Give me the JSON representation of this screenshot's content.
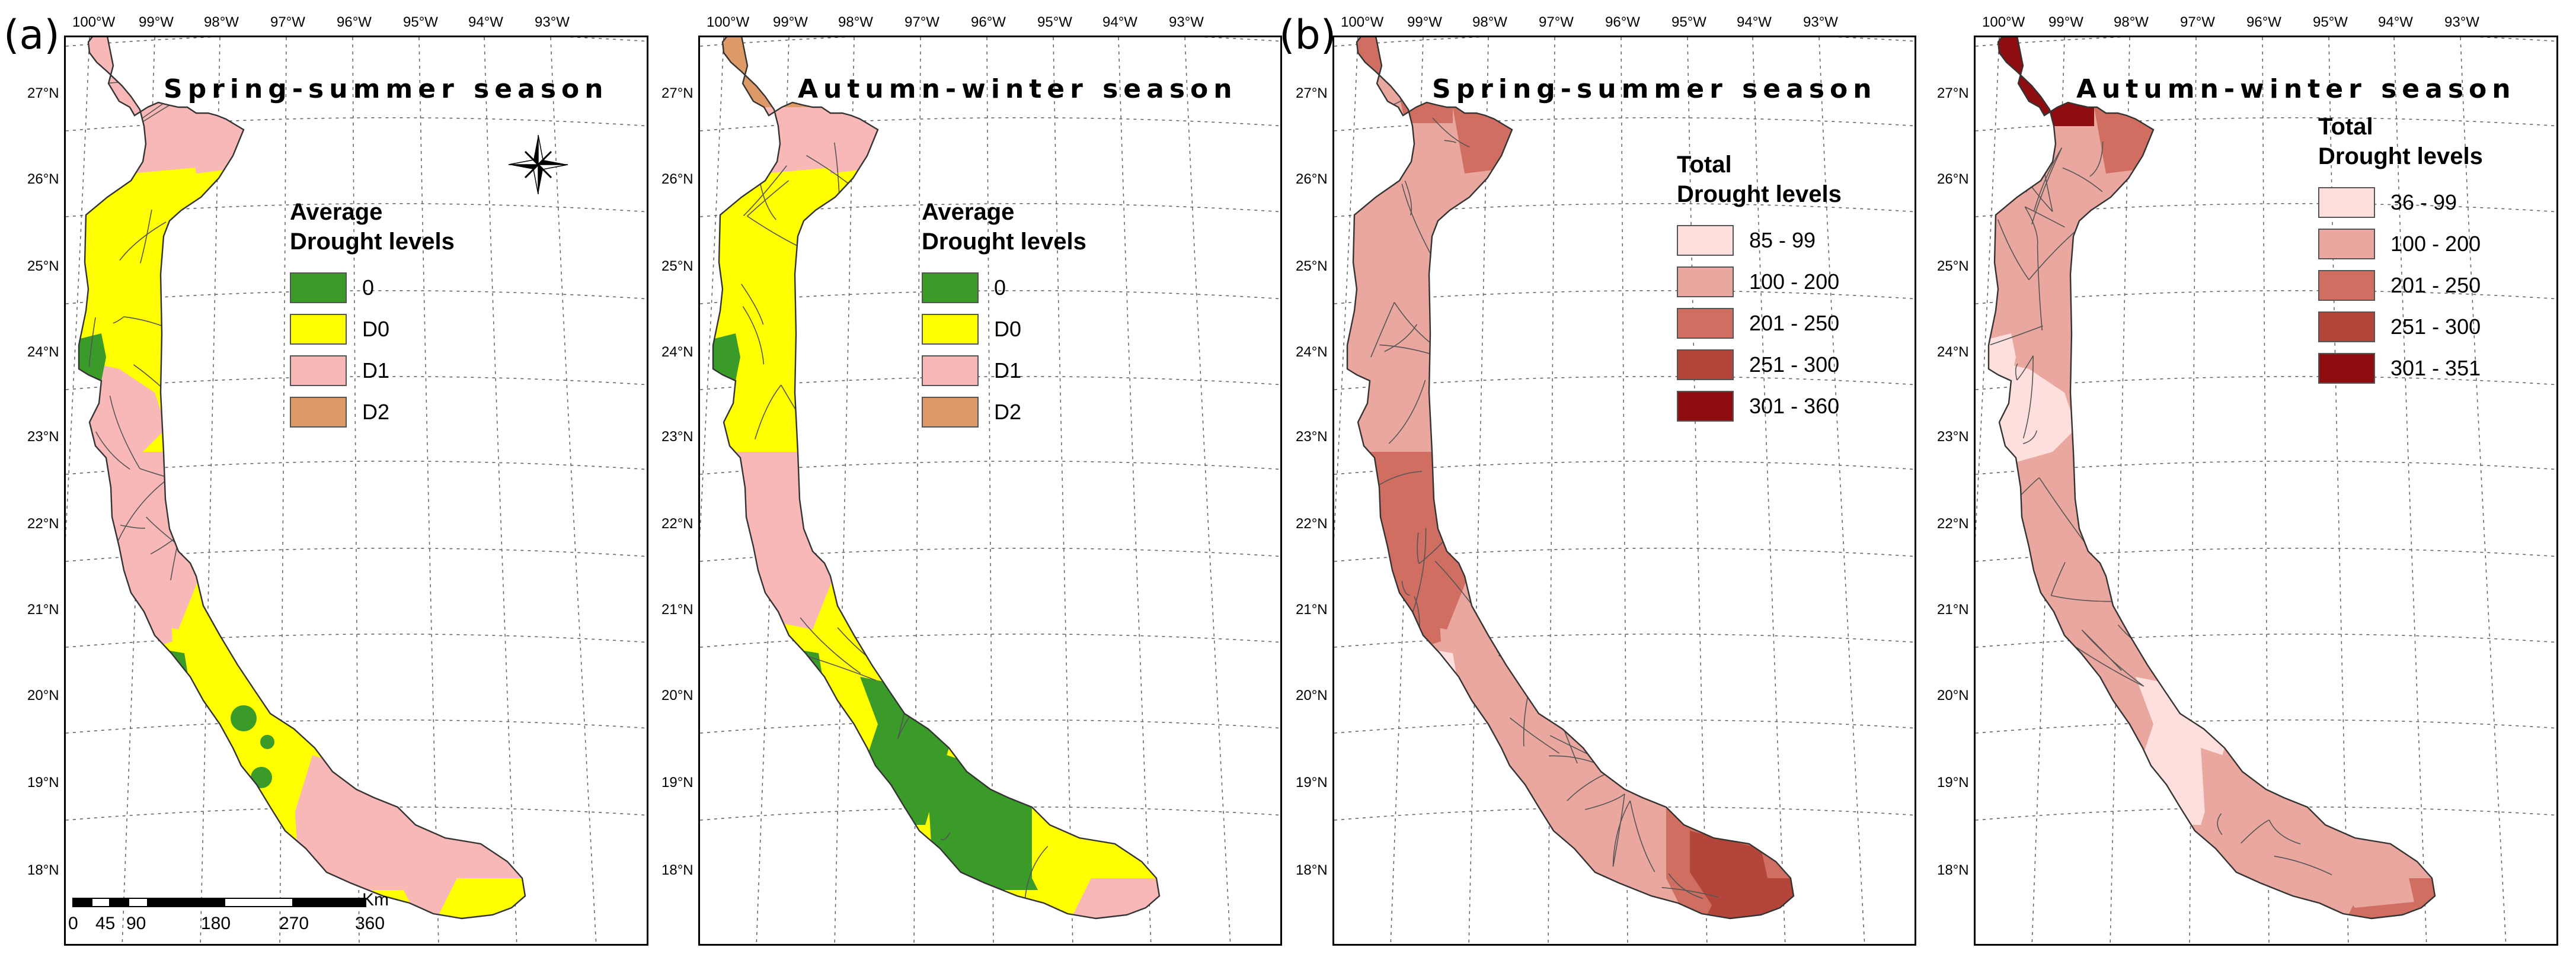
{
  "panel_labels": [
    "(a)",
    "(b)"
  ],
  "tick_labels": {
    "longitude": [
      "100°W",
      "99°W",
      "98°W",
      "97°W",
      "96°W",
      "95°W",
      "94°W",
      "93°W"
    ],
    "latitude": [
      "27°N",
      "26°N",
      "25°N",
      "24°N",
      "23°N",
      "22°N",
      "21°N",
      "20°N",
      "19°N",
      "18°N"
    ]
  },
  "colors": {
    "green": "#3a9b28",
    "yellow": "#ffff00",
    "pink": "#f8b8b8",
    "tan": "#dd9966",
    "total_1": "#fde0de",
    "total_2": "#e9a79f",
    "total_3": "#cf6e61",
    "total_4": "#b3453b",
    "total_5": "#8e0d10"
  },
  "maps": [
    {
      "title": "Spring-summer season",
      "legend_title": [
        "Average",
        "Drought levels"
      ],
      "legend": [
        {
          "label": "0",
          "color": "#3a9b28"
        },
        {
          "label": "D0",
          "color": "#ffff00"
        },
        {
          "label": "D1",
          "color": "#f8b8b8"
        },
        {
          "label": "D2",
          "color": "#dd9966"
        }
      ],
      "has_north_arrow": true,
      "has_scale_bar": true
    },
    {
      "title": "Autumn-winter season",
      "legend_title": [
        "Average",
        "Drought levels"
      ],
      "legend": [
        {
          "label": "0",
          "color": "#3a9b28"
        },
        {
          "label": "D0",
          "color": "#ffff00"
        },
        {
          "label": "D1",
          "color": "#f8b8b8"
        },
        {
          "label": "D2",
          "color": "#dd9966"
        }
      ]
    },
    {
      "title": "Spring-summer season",
      "legend_title": [
        "Total",
        "Drought levels"
      ],
      "legend": [
        {
          "label": "85 - 99",
          "color": "#fde0de"
        },
        {
          "label": "100 - 200",
          "color": "#e9a79f"
        },
        {
          "label": "201 - 250",
          "color": "#cf6e61"
        },
        {
          "label": "251 - 300",
          "color": "#b3453b"
        },
        {
          "label": "301 - 360",
          "color": "#8e0d10"
        }
      ]
    },
    {
      "title": "Autumn-winter season",
      "legend_title": [
        "Total",
        "Drought levels"
      ],
      "legend": [
        {
          "label": "36 - 99",
          "color": "#fde0de"
        },
        {
          "label": "100 - 200",
          "color": "#e9a79f"
        },
        {
          "label": "201 - 250",
          "color": "#cf6e61"
        },
        {
          "label": "251 - 300",
          "color": "#b3453b"
        },
        {
          "label": "301 - 351",
          "color": "#8e0d10"
        }
      ]
    }
  ],
  "scale_bar": {
    "unit": "Km",
    "labels": [
      "0",
      "45",
      "90",
      "180",
      "270",
      "360"
    ]
  }
}
